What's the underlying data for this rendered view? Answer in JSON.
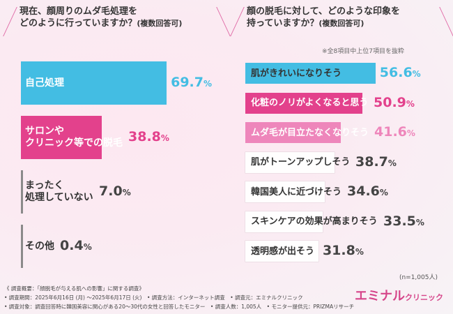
{
  "footer": {
    "line1": "《 調査概要：「顔脱毛が与える肌への影響」に関する調査》",
    "line2": "• 調査期間：2025年6月16日 (月) 〜2025年6月17日 (火)　• 調査方法：インターネット調査　• 調査元：エミナルクリニック",
    "line3": "• 調査対象：調査回答時に韓国美容に関心がある20〜30代の女性と回答したモニター　• 調査人数：1,005人　• モニター提供元：PRIZMAリサーチ"
  },
  "logo": {
    "main": "エミナル",
    "sub": "クリニック"
  },
  "sample_note": "(n=1,005人)",
  "colors": {
    "blue": "#43bde3",
    "pink_strong": "#e3418c",
    "pink_light": "#ee86bb",
    "gray": "#8a8a8a",
    "track": "#ffffff"
  },
  "chart_data": [
    {
      "type": "bar",
      "orientation": "horizontal",
      "title_line1": "現在、顔周りのムダ毛処理を",
      "title_line2": "どのように行っていますか？",
      "title_suffix": "(複数回答可)",
      "categories": [
        "自己処理",
        "サロンや\nクリニック等での脱毛",
        "まったく\n処理していない",
        "その他"
      ],
      "values": [
        69.7,
        38.8,
        7.0,
        0.4
      ],
      "value_labels": [
        [
          "69.",
          "7",
          "%"
        ],
        [
          "38.",
          "8",
          "%"
        ],
        [
          "7.",
          "0",
          "%"
        ],
        [
          "0.",
          "4",
          "%"
        ]
      ],
      "bar_colors": [
        "#43bde3",
        "#e3418c",
        "#8a8a8a",
        "#8a8a8a"
      ],
      "label_colors": [
        "#ffffff",
        "#ffffff",
        "#333333",
        "#333333"
      ],
      "value_colors": [
        "#43bde3",
        "#e3418c",
        "#444444",
        "#444444"
      ],
      "xlim": [
        0,
        100
      ]
    },
    {
      "type": "bar",
      "orientation": "horizontal",
      "title_line1": "顔の脱毛に対して、どのような印象を",
      "title_line2": "持っていますか？",
      "title_suffix": "(複数回答可)",
      "note": "※全8項目中上位7項目を抜粋",
      "categories": [
        "肌がきれいになりそう",
        "化粧のノリがよくなると思う",
        "ムダ毛が目立たなくなりそう",
        "肌がトーンアップしそう",
        "韓国美人に近づけそう",
        "スキンケアの効果が高まりそう",
        "透明感が出そう"
      ],
      "values": [
        56.6,
        50.9,
        41.6,
        38.7,
        34.6,
        33.5,
        31.8
      ],
      "value_labels": [
        [
          "56.",
          "6",
          "%"
        ],
        [
          "50.",
          "9",
          "%"
        ],
        [
          "41.",
          "6",
          "%"
        ],
        [
          "38.",
          "7",
          "%"
        ],
        [
          "34.",
          "6",
          "%"
        ],
        [
          "33.",
          "5",
          "%"
        ],
        [
          "31.",
          "8",
          "%"
        ]
      ],
      "bar_colors": [
        "#43bde3",
        "#e3418c",
        "#ee86bb",
        "#ffffff",
        "#ffffff",
        "#ffffff",
        "#ffffff"
      ],
      "label_colors": [
        "#333333",
        "#ffffff",
        "#ffffff",
        "#333333",
        "#333333",
        "#333333",
        "#333333"
      ],
      "value_colors": [
        "#43bde3",
        "#e3418c",
        "#ee86bb",
        "#444444",
        "#444444",
        "#444444",
        "#444444"
      ],
      "xlim": [
        0,
        100
      ]
    }
  ]
}
